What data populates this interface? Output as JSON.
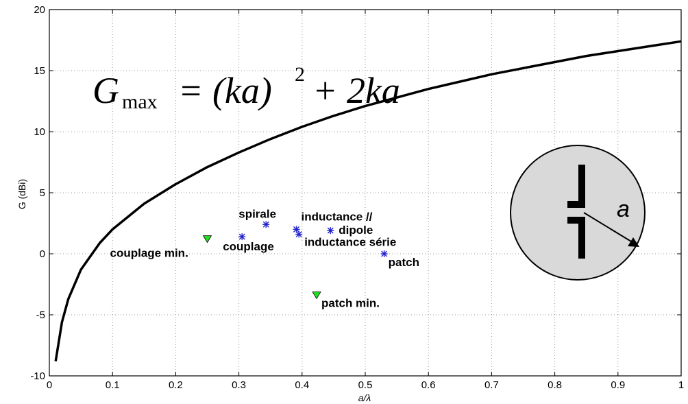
{
  "chart_data": {
    "type": "line",
    "xlabel": "a/λ",
    "ylabel": "G (dBi)",
    "xlim": [
      0,
      1
    ],
    "ylim": [
      -10,
      20
    ],
    "xticks": [
      0,
      0.1,
      0.2,
      0.3,
      0.4,
      0.5,
      0.6,
      0.7,
      0.8,
      0.9,
      1
    ],
    "xtick_labels": [
      "0",
      "0.1",
      "0.2",
      "0.3",
      "0.4",
      "0.5",
      "0.6",
      "0.7",
      "0.8",
      "0.9",
      "1"
    ],
    "yticks": [
      -10,
      -5,
      0,
      5,
      10,
      15,
      20
    ],
    "ytick_labels": [
      "-10",
      "-5",
      "0",
      "5",
      "10",
      "15",
      "20"
    ],
    "grid": true,
    "curve": {
      "formula_note": "Gmax = (ka)^2 + 2ka",
      "color": "#000000",
      "x": [
        0.01,
        0.02,
        0.03,
        0.05,
        0.08,
        0.1,
        0.15,
        0.2,
        0.25,
        0.3,
        0.35,
        0.4,
        0.45,
        0.5,
        0.55,
        0.6,
        0.65,
        0.7,
        0.75,
        0.8,
        0.85,
        0.9,
        0.95,
        1.0
      ],
      "y": [
        -8.8,
        -5.6,
        -3.7,
        -1.3,
        0.9,
        2.0,
        4.1,
        5.7,
        7.1,
        8.3,
        9.4,
        10.4,
        11.3,
        12.1,
        12.8,
        13.5,
        14.1,
        14.7,
        15.2,
        15.7,
        16.2,
        16.6,
        17.0,
        17.4
      ]
    },
    "points": [
      {
        "name": "couplage min.",
        "x": 0.25,
        "y": 1.2,
        "marker": "triangle",
        "color": "#22dd22"
      },
      {
        "name": "couplage",
        "x": 0.305,
        "y": 1.4,
        "marker": "star",
        "color": "#2222cc"
      },
      {
        "name": "spirale",
        "x": 0.343,
        "y": 2.4,
        "marker": "star",
        "color": "#2222cc"
      },
      {
        "name": "inductance //",
        "x": 0.391,
        "y": 2.0,
        "marker": "star",
        "color": "#2222cc"
      },
      {
        "name": "inductance série",
        "x": 0.395,
        "y": 1.6,
        "marker": "star",
        "color": "#2222cc"
      },
      {
        "name": "dipole",
        "x": 0.445,
        "y": 1.9,
        "marker": "star",
        "color": "#2222cc"
      },
      {
        "name": "patch",
        "x": 0.53,
        "y": 0.0,
        "marker": "star",
        "color": "#2222cc"
      },
      {
        "name": "patch min.",
        "x": 0.423,
        "y": -3.4,
        "marker": "triangle",
        "color": "#22dd22"
      }
    ]
  },
  "formula": {
    "G": "G",
    "sub": "max",
    "rhs": "= (ka)",
    "exp": "2",
    "tail": "+ 2ka"
  },
  "inset": {
    "label": "a",
    "fill": "#d9d9d9"
  }
}
